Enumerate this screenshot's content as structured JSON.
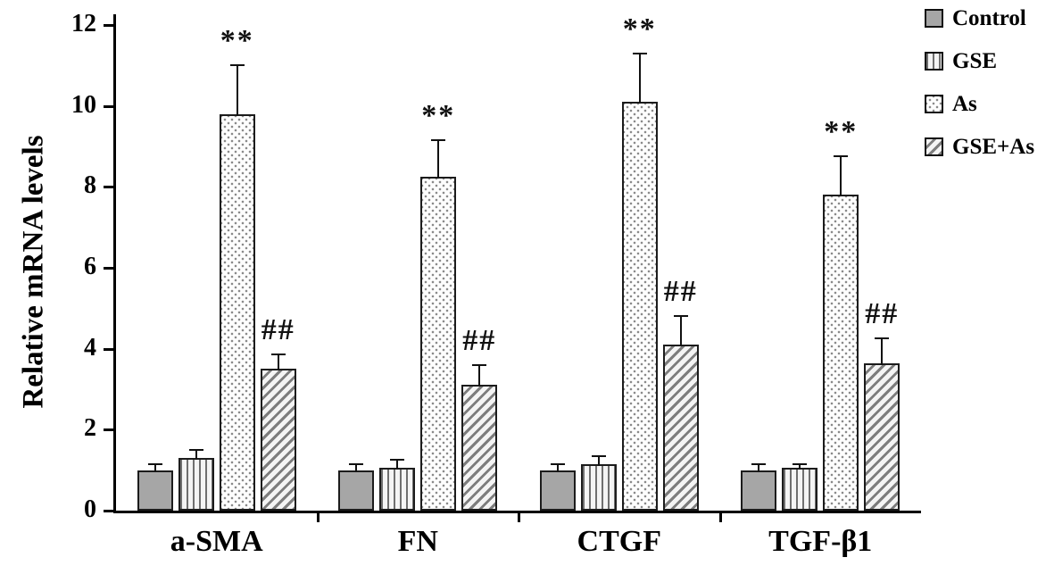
{
  "chart_data": {
    "type": "bar",
    "title": "",
    "ylabel": "Relative mRNA levels",
    "xlabel": "",
    "ylim": [
      0,
      12
    ],
    "yticks": [
      0,
      2,
      4,
      6,
      8,
      10,
      12
    ],
    "grid": false,
    "legend_position": "top-right",
    "categories": [
      "a-SMA",
      "FN",
      "CTGF",
      "TGF-β1"
    ],
    "series": [
      {
        "name": "Control",
        "pattern": "solid-gray",
        "values": [
          1.0,
          1.0,
          1.0,
          1.0
        ],
        "errors": [
          0.15,
          0.15,
          0.15,
          0.15
        ],
        "annotations": [
          "",
          "",
          "",
          ""
        ]
      },
      {
        "name": "GSE",
        "pattern": "vertical-lines",
        "values": [
          1.3,
          1.05,
          1.15,
          1.05
        ],
        "errors": [
          0.2,
          0.2,
          0.2,
          0.1
        ],
        "annotations": [
          "",
          "",
          "",
          ""
        ]
      },
      {
        "name": "As",
        "pattern": "dots",
        "values": [
          9.8,
          8.25,
          10.1,
          7.8
        ],
        "errors": [
          1.2,
          0.9,
          1.2,
          0.95
        ],
        "annotations": [
          "**",
          "**",
          "**",
          "**"
        ]
      },
      {
        "name": "GSE+As",
        "pattern": "diagonal-stripes",
        "values": [
          3.5,
          3.1,
          4.1,
          3.65
        ],
        "errors": [
          0.35,
          0.5,
          0.7,
          0.6
        ],
        "annotations": [
          "##",
          "##",
          "##",
          "##"
        ]
      }
    ],
    "colors": {
      "bar_gray": "#a6a6a6",
      "pattern_line": "#7d7d7d",
      "axis": "#000000",
      "background": "#ffffff"
    }
  }
}
